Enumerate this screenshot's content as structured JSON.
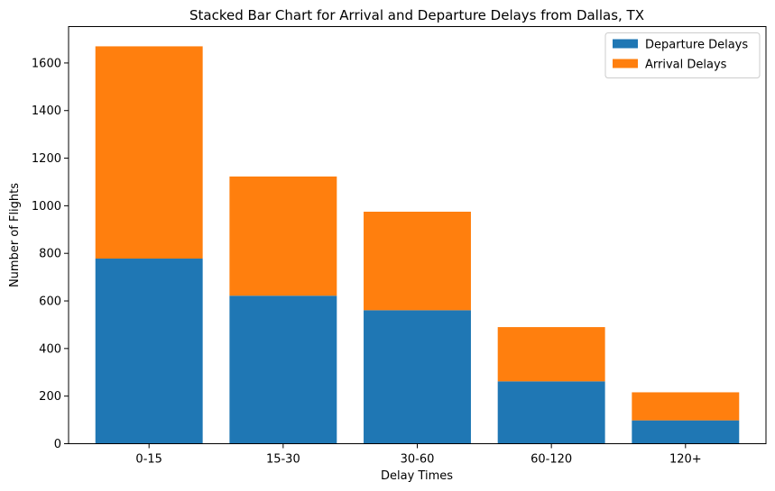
{
  "chart_data": {
    "type": "bar",
    "stacked": true,
    "title": "Stacked Bar Chart for Arrival and Departure Delays from Dallas, TX",
    "xlabel": "Delay Times",
    "ylabel": "Number of Flights",
    "categories": [
      "0-15",
      "15-30",
      "30-60",
      "60-120",
      "120+"
    ],
    "series": [
      {
        "name": "Departure Delays",
        "color": "#1f77b4",
        "values": [
          778,
          622,
          561,
          262,
          98
        ]
      },
      {
        "name": "Arrival Delays",
        "color": "#ff7f0e",
        "values": [
          892,
          501,
          414,
          228,
          118
        ]
      }
    ],
    "ylim": [
      0,
      1753
    ],
    "yticks": [
      0,
      200,
      400,
      600,
      800,
      1000,
      1200,
      1400,
      1600
    ],
    "grid": false,
    "legend_position": "top-right"
  }
}
